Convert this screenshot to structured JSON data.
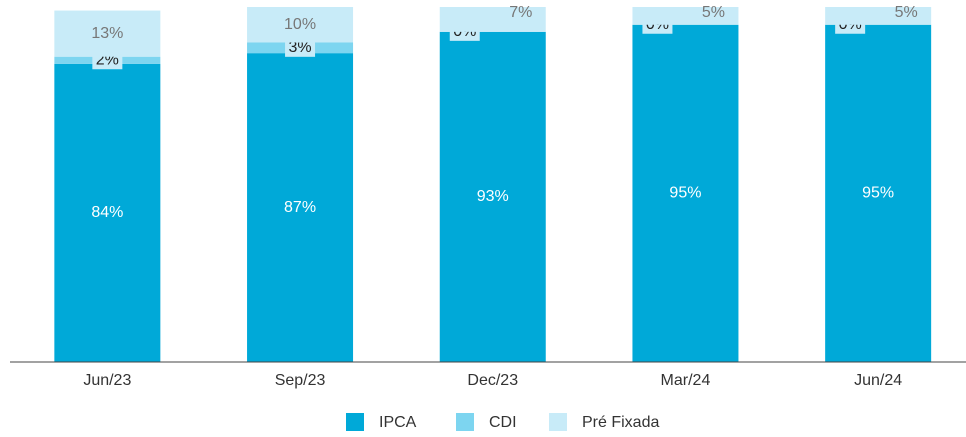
{
  "chart_data": {
    "type": "stacked_bar",
    "categories": [
      "Jun/23",
      "Sep/23",
      "Dec/23",
      "Mar/24",
      "Jun/24"
    ],
    "series": [
      {
        "name": "IPCA",
        "color": "#00a9d8",
        "values": [
          84,
          87,
          93,
          95,
          95
        ],
        "value_labels": [
          "84%",
          "87%",
          "93%",
          "95%",
          "95%"
        ]
      },
      {
        "name": "CDI",
        "color": "#7dd5f0",
        "values": [
          2,
          3,
          0,
          0,
          0
        ],
        "value_labels": [
          "2%",
          "3%",
          "0%",
          "0%",
          "0%"
        ]
      },
      {
        "name": "Pré Fixada",
        "color": "#c8ebf8",
        "values": [
          13,
          10,
          7,
          5,
          5
        ],
        "value_labels": [
          "13%",
          "10%",
          "7%",
          "5%",
          "5%"
        ]
      }
    ],
    "ylim": [
      0,
      100
    ]
  }
}
